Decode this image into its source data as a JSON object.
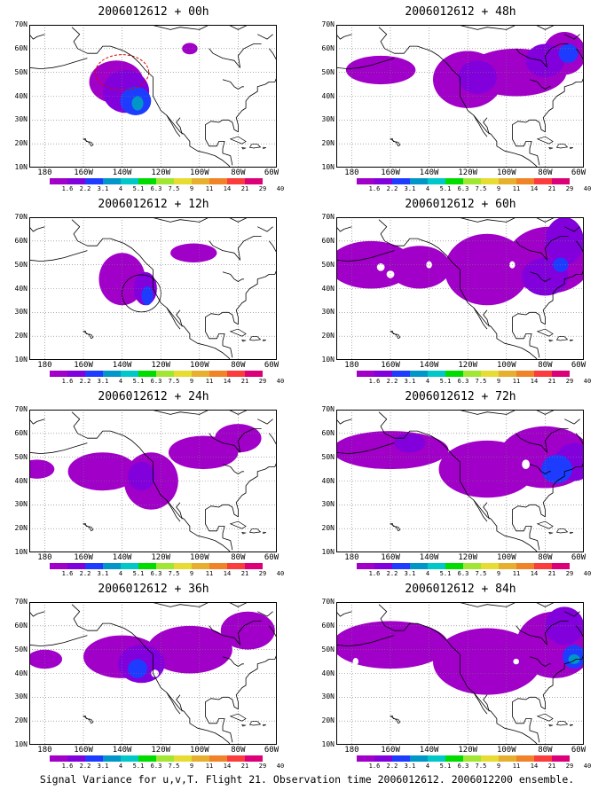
{
  "panels": [
    {
      "title": "2006012612 + 00h"
    },
    {
      "title": "2006012612 + 48h"
    },
    {
      "title": "2006012612 + 12h"
    },
    {
      "title": "2006012612 + 60h"
    },
    {
      "title": "2006012612 + 24h"
    },
    {
      "title": "2006012612 + 72h"
    },
    {
      "title": "2006012612 + 36h"
    },
    {
      "title": "2006012612 + 84h"
    }
  ],
  "lat_labels": [
    "70N",
    "60N",
    "50N",
    "40N",
    "30N",
    "20N",
    "10N"
  ],
  "lon_labels": [
    "180",
    "160W",
    "140W",
    "120W",
    "100W",
    "80W",
    "60W"
  ],
  "colorbar": {
    "labels": [
      "1.6",
      "2.2",
      "3.1",
      "4",
      "5.1",
      "6.3",
      "7.5",
      "9",
      "11",
      "14",
      "21",
      "29",
      "40"
    ],
    "colors": [
      "#a000c8",
      "#8200dc",
      "#1e3cff",
      "#0096c8",
      "#00c8c8",
      "#00dc00",
      "#a0e632",
      "#e6dc32",
      "#e6af2d",
      "#f08228",
      "#fa3c3c",
      "#dc0078"
    ]
  },
  "caption": "Signal Variance for u,v,T. Flight 21. Observation time 2006012612. 2006012200 ensemble."
}
